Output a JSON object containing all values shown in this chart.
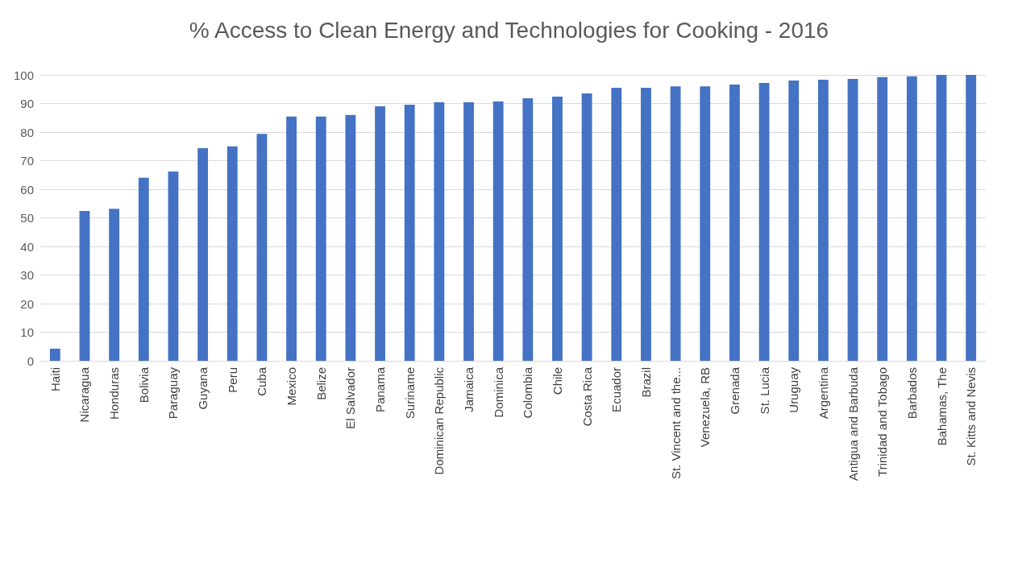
{
  "chart_data": {
    "type": "bar",
    "title": "% Access to Clean Energy and Technologies for Cooking - 2016",
    "categories": [
      "Haiti",
      "Nicaragua",
      "Honduras",
      "Bolivia",
      "Paraguay",
      "Guyana",
      "Peru",
      "Cuba",
      "Mexico",
      "Belize",
      "El Salvador",
      "Panama",
      "Suriname",
      "Dominican Republic",
      "Jamaica",
      "Dominica",
      "Colombia",
      "Chile",
      "Costa Rica",
      "Ecuador",
      "Brazil",
      "St. Vincent and the...",
      "Venezuela, RB",
      "Grenada",
      "St. Lucia",
      "Uruguay",
      "Argentina",
      "Antigua and Barbuda",
      "Trinidad and Tobago",
      "Barbados",
      "Bahamas, The",
      "St. Kitts and Nevis"
    ],
    "values": [
      4.2,
      52.4,
      53.2,
      64,
      66.2,
      74.4,
      75,
      79.4,
      85.4,
      85.4,
      86,
      89,
      89.6,
      90.4,
      90.4,
      90.7,
      91.8,
      92.4,
      93.5,
      95.5,
      95.5,
      96,
      96,
      96.6,
      97.2,
      98,
      98.3,
      98.6,
      99.2,
      99.5,
      100,
      100
    ],
    "color": "#4472c4",
    "ylim": [
      0,
      100
    ],
    "yticks": [
      0,
      10,
      20,
      30,
      40,
      50,
      60,
      70,
      80,
      90,
      100
    ],
    "grid": "y"
  }
}
